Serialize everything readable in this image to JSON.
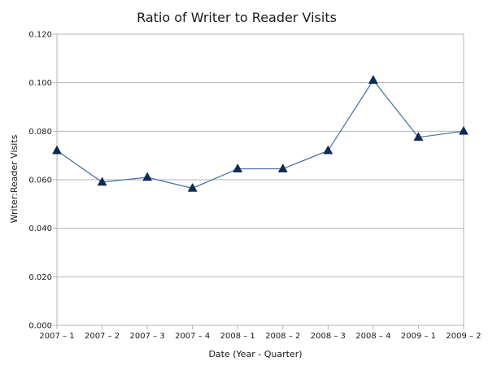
{
  "chart_data": {
    "type": "line",
    "title": "Ratio of Writer to Reader Visits",
    "xlabel": "Date (Year - Quarter)",
    "ylabel": "Writer:Reader Visits",
    "categories": [
      "2007 – 1",
      "2007 – 2",
      "2007 – 3",
      "2007 – 4",
      "2008 – 1",
      "2008 – 2",
      "2008 – 3",
      "2008 – 4",
      "2009 – 1",
      "2009 – 2"
    ],
    "series": [
      {
        "values": [
          0.072,
          0.059,
          0.061,
          0.0565,
          0.0645,
          0.0645,
          0.072,
          0.101,
          0.0775,
          0.08
        ]
      }
    ],
    "ylim": [
      0,
      0.12
    ],
    "yticks": [
      "0.000",
      "0.020",
      "0.040",
      "0.060",
      "0.080",
      "0.100",
      "0.120"
    ],
    "grid": true,
    "legend": "none",
    "line_color": "#3d6ea8",
    "marker_color": "#0d2b55",
    "marker": "triangle"
  }
}
